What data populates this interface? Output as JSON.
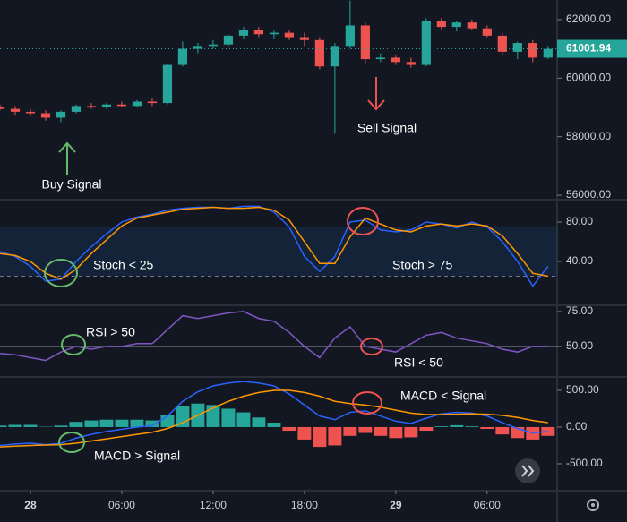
{
  "chart_data": [
    {
      "type": "candlestick",
      "x": [
        -2,
        -1,
        0,
        1,
        2,
        3,
        4,
        5,
        6,
        7,
        8,
        9,
        10,
        11,
        12,
        13,
        14,
        15,
        16,
        17,
        18,
        19,
        20,
        21,
        22,
        23,
        24,
        25,
        26,
        27,
        28,
        29,
        30,
        31,
        32,
        33,
        34
      ],
      "open": [
        59000,
        58950,
        58850,
        58800,
        58650,
        58850,
        59050,
        59000,
        59100,
        59050,
        59200,
        59150,
        60450,
        61000,
        61100,
        61150,
        61450,
        61650,
        61500,
        61550,
        61400,
        61300,
        60400,
        61100,
        61800,
        60650,
        60700,
        60550,
        60450,
        61950,
        61750,
        61900,
        61700,
        61450,
        60900,
        61200,
        60700
      ],
      "high": [
        59100,
        59050,
        58950,
        58900,
        58900,
        59100,
        59150,
        59150,
        59200,
        59250,
        59300,
        60500,
        61250,
        61200,
        61300,
        61500,
        61750,
        61750,
        61650,
        61650,
        61550,
        61400,
        61200,
        62650,
        61900,
        60850,
        60800,
        60700,
        62050,
        62050,
        61950,
        62000,
        61800,
        61550,
        61250,
        61300,
        61100
      ],
      "low": [
        58900,
        58750,
        58700,
        58550,
        58500,
        58800,
        58950,
        58950,
        59000,
        59000,
        59050,
        59100,
        60400,
        60850,
        61000,
        61050,
        61350,
        61400,
        61350,
        61300,
        61100,
        60300,
        58100,
        61000,
        60500,
        60550,
        60450,
        60350,
        60400,
        61650,
        61600,
        61650,
        61400,
        60800,
        60650,
        60550,
        60650
      ],
      "close": [
        58950,
        58850,
        58800,
        58650,
        58850,
        59050,
        59000,
        59100,
        59050,
        59200,
        59150,
        60450,
        61000,
        61100,
        61150,
        61450,
        61650,
        61500,
        61550,
        61400,
        61300,
        60400,
        61100,
        61800,
        60650,
        60700,
        60550,
        60450,
        61950,
        61750,
        61900,
        61700,
        61450,
        60900,
        61200,
        60700,
        61000
      ],
      "up_color": "#26a69a",
      "down_color": "#ef5350",
      "xlim": [
        -2,
        34.6
      ],
      "ylim": [
        55880,
        62670
      ],
      "yticks": [
        {
          "value": 62000,
          "label": "62000.00"
        },
        {
          "value": 60000,
          "label": "60000.00"
        },
        {
          "value": 58000,
          "label": "58000.00"
        },
        {
          "value": 56000,
          "label": "56000.00"
        }
      ],
      "last_price": 61001.94,
      "annotations": [
        {
          "text": "Buy Signal",
          "color": "#66bb6a"
        },
        {
          "text": "Sell Signal",
          "color": "#ef5350"
        }
      ]
    },
    {
      "type": "line",
      "x": [
        -2,
        -1,
        0,
        1,
        2,
        3,
        4,
        5,
        6,
        7,
        8,
        9,
        10,
        11,
        12,
        13,
        14,
        15,
        16,
        17,
        18,
        19,
        20,
        21,
        22,
        23,
        24,
        25,
        26,
        27,
        28,
        29,
        30,
        31,
        32,
        33,
        34
      ],
      "series": [
        {
          "color": "#2962ff",
          "values": [
            50,
            45,
            35,
            20,
            22,
            40,
            55,
            68,
            80,
            85,
            88,
            92,
            94,
            95,
            95,
            94,
            96,
            96,
            90,
            75,
            45,
            30,
            45,
            80,
            82,
            72,
            70,
            72,
            80,
            78,
            74,
            80,
            75,
            60,
            40,
            15,
            35
          ]
        },
        {
          "color": "#ff9800",
          "values": [
            48,
            46,
            40,
            28,
            22,
            32,
            48,
            62,
            76,
            84,
            87,
            90,
            93,
            94,
            95,
            94,
            94,
            95,
            92,
            82,
            60,
            38,
            38,
            65,
            84,
            78,
            72,
            70,
            76,
            78,
            76,
            78,
            76,
            66,
            48,
            28,
            25
          ]
        }
      ],
      "bands": [
        75,
        25
      ],
      "xlim": [
        -2,
        34.6
      ],
      "ylim": [
        -3.6,
        101.8
      ],
      "yticks": [
        {
          "value": 80,
          "label": "80.00"
        },
        {
          "value": 40,
          "label": "40.00"
        }
      ],
      "annotations": [
        {
          "text": "Stoch < 25"
        },
        {
          "text": "Stoch > 75"
        }
      ]
    },
    {
      "type": "line",
      "x": [
        -2,
        -1,
        0,
        1,
        2,
        3,
        4,
        5,
        6,
        7,
        8,
        9,
        10,
        11,
        12,
        13,
        14,
        15,
        16,
        17,
        18,
        19,
        20,
        21,
        22,
        23,
        24,
        25,
        26,
        27,
        28,
        29,
        30,
        31,
        32,
        33,
        34
      ],
      "series": [
        {
          "color": "#7e57c2",
          "values": [
            45,
            44,
            42,
            40,
            46,
            50,
            48,
            50,
            50,
            52,
            52,
            62,
            72,
            70,
            72,
            74,
            75,
            70,
            68,
            60,
            50,
            42,
            56,
            64,
            50,
            48,
            46,
            52,
            58,
            60,
            56,
            54,
            52,
            48,
            46,
            50,
            50
          ]
        }
      ],
      "hline": 50,
      "xlim": [
        -2,
        34.6
      ],
      "ylim": [
        28.8,
        78.8
      ],
      "yticks": [
        {
          "value": 75,
          "label": "75.00"
        },
        {
          "value": 50,
          "label": "50.00"
        }
      ],
      "annotations": [
        {
          "text": "RSI > 50"
        },
        {
          "text": "RSI < 50"
        }
      ]
    },
    {
      "type": "macd",
      "x": [
        -2,
        -1,
        0,
        1,
        2,
        3,
        4,
        5,
        6,
        7,
        8,
        9,
        10,
        11,
        12,
        13,
        14,
        15,
        16,
        17,
        18,
        19,
        20,
        21,
        22,
        23,
        24,
        25,
        26,
        27,
        28,
        29,
        30,
        31,
        32,
        33,
        34
      ],
      "series": [
        {
          "color": "#2962ff",
          "values": [
            -250,
            -230,
            -220,
            -240,
            -220,
            -150,
            -100,
            -60,
            -30,
            0,
            20,
            150,
            350,
            480,
            560,
            600,
            620,
            600,
            560,
            450,
            300,
            150,
            100,
            200,
            220,
            150,
            80,
            50,
            120,
            180,
            200,
            190,
            150,
            60,
            -20,
            -80,
            -60
          ]
        },
        {
          "color": "#ff9800",
          "values": [
            -270,
            -260,
            -250,
            -245,
            -240,
            -220,
            -190,
            -160,
            -130,
            -100,
            -70,
            -20,
            60,
            160,
            260,
            350,
            420,
            470,
            500,
            500,
            470,
            420,
            350,
            320,
            300,
            270,
            230,
            190,
            170,
            170,
            175,
            180,
            175,
            160,
            130,
            90,
            60
          ]
        }
      ],
      "histogram": [
        20,
        30,
        30,
        5,
        20,
        70,
        90,
        100,
        100,
        100,
        90,
        170,
        290,
        320,
        300,
        250,
        200,
        130,
        60,
        -50,
        -170,
        -270,
        -250,
        -120,
        -80,
        -120,
        -150,
        -140,
        -50,
        10,
        25,
        10,
        -25,
        -100,
        -150,
        -170,
        -120
      ],
      "up_color": "#26a69a",
      "down_color": "#ef5350",
      "xlim": [
        -2,
        34.6
      ],
      "ylim": [
        -866,
        670
      ],
      "yticks": [
        {
          "value": 500,
          "label": "500.00"
        },
        {
          "value": 0,
          "label": "0.00"
        },
        {
          "value": -500,
          "label": "-500.00"
        }
      ],
      "xticks": [
        {
          "value": 0,
          "label": "28"
        },
        {
          "value": 6,
          "label": "06:00"
        },
        {
          "value": 12,
          "label": "12:00"
        },
        {
          "value": 18,
          "label": "18:00"
        },
        {
          "value": 24,
          "label": "29"
        },
        {
          "value": 30,
          "label": "06:00"
        }
      ],
      "annotations": [
        {
          "text": "MACD > Signal"
        },
        {
          "text": "MACD < Signal"
        }
      ]
    }
  ]
}
